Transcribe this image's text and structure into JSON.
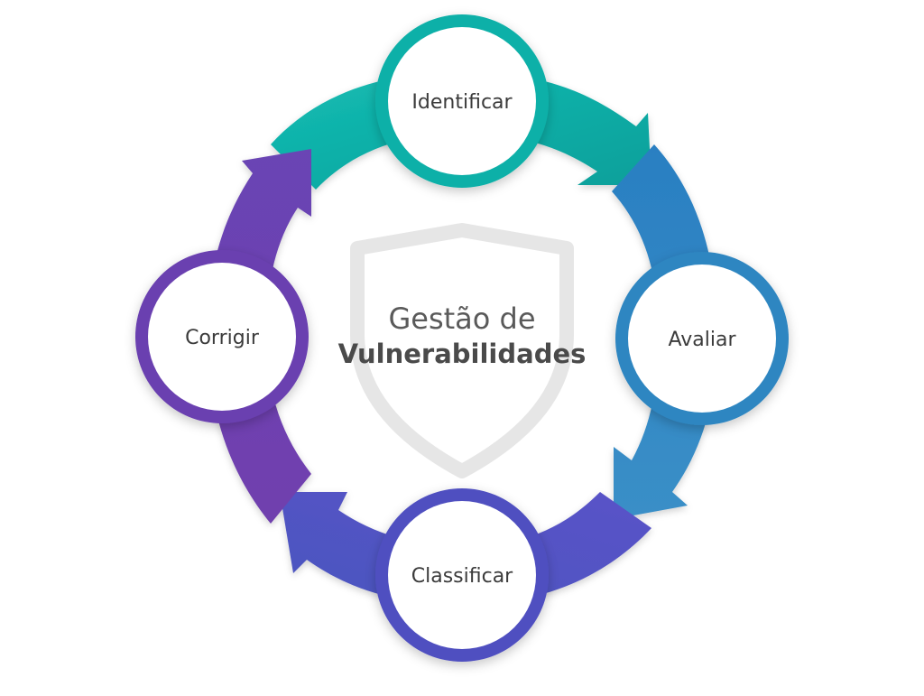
{
  "center": {
    "title_line1": "Gestão de",
    "title_line2": "Vulnerabilidades"
  },
  "steps": [
    {
      "label": "Identificar",
      "color": "#0fb0a8"
    },
    {
      "label": "Avaliar",
      "color": "#2e86c1"
    },
    {
      "label": "Classificar",
      "color": "#4f4fc0"
    },
    {
      "label": "Corrigir",
      "color": "#6a3fb0"
    }
  ],
  "colors": {
    "teal": "#0fb0a8",
    "blue": "#2e86c1",
    "indigo": "#4f4fc0",
    "purple": "#6a3fb0",
    "shield": "#e3e3e3"
  }
}
